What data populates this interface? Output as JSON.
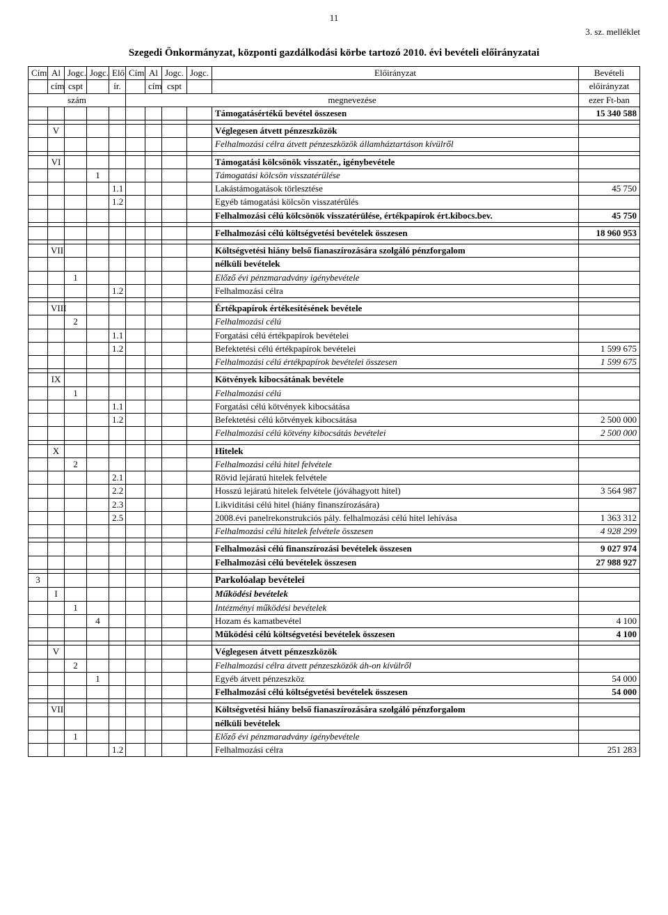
{
  "page_number": "11",
  "attachment": "3. sz. melléklet",
  "doc_title": "Szegedi Önkormányzat, központi gazdálkodási körbe tartozó 2010. évi bevételi előirányzatai",
  "header": {
    "cim": "Cím",
    "alcim_top": "Al",
    "alcim_bot": "cím",
    "jogc_cspt_top": "Jogc.",
    "jogc_cspt_bot": "cspt",
    "jogc": "Jogc.",
    "elo_top": "Elő",
    "elo_bot": "ír.",
    "cim2": "Cím",
    "al2_top": "Al",
    "al2_bot": "cím",
    "jogc3_top": "Jogc.",
    "jogc3_bot": "cspt",
    "jogc4": "Jogc.",
    "eloiranyzat": "Előirányzat",
    "bevetel_top": "Bevételi",
    "bevetel_bot": "előirányzat",
    "szam": "szám",
    "megnevezese": "megnevezése",
    "ezer": "ezer Ft-ban"
  },
  "rows": [
    {
      "text": "Támogatásértékű bevétel összesen",
      "value": "15 340 588",
      "bold": true
    },
    {
      "col1": "V",
      "text": "Véglegesen átvett pénzeszközök",
      "bold": true
    },
    {
      "text": "Felhalmozási célra átvett pénzeszközök államháztartáson kívülről",
      "italic": true,
      "indent": 1
    },
    {
      "col1": "VI",
      "text": "Támogatási kölcsönök visszatér., igénybevétele",
      "bold": true
    },
    {
      "col3": "1",
      "text": "Támogatási kölcsön visszatérülése",
      "italic": true,
      "indent": 1
    },
    {
      "col4": "1.1",
      "text": "Lakástámogatások törlesztése",
      "value": "45 750",
      "indent": 2
    },
    {
      "col4": "1.2",
      "text": "Egyéb támogatási kölcsön visszatérülés",
      "indent": 2
    },
    {
      "text": "Felhalmozási célú kölcsönök visszatérülése, értékpapírok ért.kibocs.bev.",
      "value": "45 750",
      "bold": true
    },
    {
      "text": "Felhalmozási célú költségvetési bevételek összesen",
      "value": "18 960 953",
      "bold": true
    },
    {
      "col1": "VII",
      "text": "Költségvetési hiány belső fianaszírozására szolgáló pénzforgalom",
      "bold": true
    },
    {
      "text": "nélküli bevételek",
      "bold": true
    },
    {
      "col2": "1",
      "text": "Előző évi pénzmaradvány igénybevétele",
      "italic": true,
      "indent": 1
    },
    {
      "col4": "1.2",
      "text": "Felhalmozási célra",
      "indent": 2
    },
    {
      "col1": "VIII",
      "text": "Értékpapírok értékesítésének bevétele",
      "bold": true
    },
    {
      "col2": "2",
      "text": "Felhalmozási célú",
      "italic": true,
      "indent": 1
    },
    {
      "col4": "1.1",
      "text": "Forgatási célú értékpapírok bevételei",
      "indent": 2
    },
    {
      "col4": "1.2",
      "text": "Befektetési célú értékpapírok bevételei",
      "value": "1 599 675",
      "indent": 2
    },
    {
      "text": "Felhalmozási célú értékpapírok bevételei összesen",
      "value": "1 599 675",
      "italic": true
    },
    {
      "col1": "IX",
      "text": "Kötvények kibocsátának bevétele",
      "bold": true
    },
    {
      "col2": "1",
      "text": "Felhalmozási célú",
      "italic": true,
      "indent": 1
    },
    {
      "col4": "1.1",
      "text": "Forgatási célú kötvények kibocsátása",
      "indent": 2
    },
    {
      "col4": "1.2",
      "text": "Befektetési célú kötvények kibocsátása",
      "value": "2 500 000",
      "indent": 2
    },
    {
      "text": "Felhalmozási célú kötvény kibocsátás bevételei",
      "value": "2 500 000",
      "italic": true
    },
    {
      "col1": "X",
      "text": "Hitelek",
      "bold": true
    },
    {
      "col2": "2",
      "text": "Felhalmozási célú hitel felvétele",
      "italic": true,
      "indent": 1
    },
    {
      "col4": "2.1",
      "text": "Rövid lejáratú hitelek felvétele",
      "indent": 2
    },
    {
      "col4": "2.2",
      "text": "Hosszú lejáratú hitelek felvétele (jóváhagyott hitel)",
      "value": "3 564 987",
      "indent": 2
    },
    {
      "col4": "2.3",
      "text": "Likviditási célú hitel (hiány finanszírozására)",
      "indent": 2
    },
    {
      "col4": "2.5",
      "text": "2008.évi panelrekonstrukciós pály. felhalmozási célú hitel lehívása",
      "value": "1 363 312",
      "indent": 2
    },
    {
      "text": "Felhalmozási célú hitelek felvétele összesen",
      "value": "4 928 299",
      "italic": true
    },
    {
      "text": "Felhalmozási célú finanszírozási bevételek összesen",
      "value": "9 027 974",
      "bold": true
    },
    {
      "text": "Felhalmozási célú bevételek összesen",
      "value": "27 988 927",
      "bold": true
    },
    {
      "col0": "3",
      "text": "Parkolóalap bevételei",
      "big": true
    },
    {
      "col1": "I",
      "text": "Működési bevételek",
      "italic": true,
      "bold": true,
      "indent": 1
    },
    {
      "col2": "1",
      "text": "Intézményi működési bevételek",
      "italic": true,
      "indent": 2
    },
    {
      "col3": "4",
      "text": "Hozam és kamatbevétel",
      "value": "4 100",
      "indent": 2
    },
    {
      "text": "Működési célú költségvetési bevételek összesen",
      "value": "4 100",
      "bold": true
    },
    {
      "col1": "V",
      "text": "Véglegesen átvett pénzeszközök",
      "bold": true
    },
    {
      "col2": "2",
      "text": "Felhalmozási célra átvett pénzeszközök áh-on kívülről",
      "italic": true,
      "indent": 1
    },
    {
      "col3": "1",
      "text": "Egyéb átvett pénzeszköz",
      "value": "54 000",
      "indent": 2
    },
    {
      "text": "Felhalmozási célú költségvetési bevételek összesen",
      "value": "54 000",
      "bold": true
    },
    {
      "col1": "VII",
      "text": "Költségvetési hiány belső fianaszírozására szolgáló pénzforgalom",
      "bold": true
    },
    {
      "text": "nélküli bevételek",
      "bold": true
    },
    {
      "col2": "1",
      "text": "Előző évi pénzmaradvány igénybevétele",
      "italic": true,
      "indent": 1
    },
    {
      "col4": "1.2",
      "text": "Felhalmozási célra",
      "value": "251 283",
      "indent": 2
    }
  ],
  "spacers_after": [
    0,
    2,
    7,
    8,
    12,
    17,
    22,
    29,
    31,
    36,
    40
  ]
}
